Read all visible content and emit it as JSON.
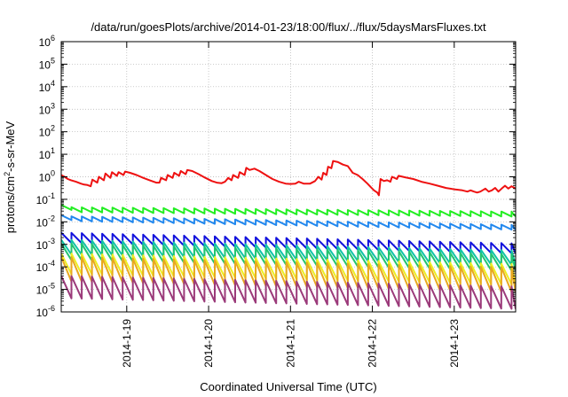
{
  "chart_data": {
    "type": "line",
    "title": "/data/run/goesPlots/archive/2014-01-23/18:00/flux/../flux/5daysMarsFluxes.txt",
    "xlabel": "Coordinated Universal Time (UTC)",
    "ylabel_parts": [
      "protons/cm",
      "2",
      "-s-sr-MeV"
    ],
    "x_axis": {
      "unit": "days",
      "start": "2014-01-18 06:00",
      "end": "2014-01-23 19:00",
      "xlim_days": [
        0,
        5.55
      ],
      "ticks": [
        {
          "label": "2014-1-19",
          "day": 0.8
        },
        {
          "label": "2014-1-20",
          "day": 1.8
        },
        {
          "label": "2014-1-21",
          "day": 2.8
        },
        {
          "label": "2014-1-22",
          "day": 3.8
        },
        {
          "label": "2014-1-23",
          "day": 4.8
        }
      ]
    },
    "y_axis": {
      "scale": "log",
      "ylim": [
        1e-06,
        1000000.0
      ],
      "tick_exponents": [
        -6,
        -5,
        -4,
        -3,
        -2,
        -1,
        0,
        1,
        2,
        3,
        4,
        5,
        6
      ],
      "tick_base": "10"
    },
    "grid": true,
    "legend": "none",
    "series": [
      {
        "color": "#ee1111",
        "points": [
          [
            0,
            1.2
          ],
          [
            0.04,
            1.0
          ],
          [
            0.08,
            0.8
          ],
          [
            0.12,
            0.7
          ],
          [
            0.18,
            0.6
          ],
          [
            0.24,
            0.5
          ],
          [
            0.28,
            0.45
          ],
          [
            0.32,
            0.43
          ],
          [
            0.36,
            0.38
          ],
          [
            0.38,
            0.75
          ],
          [
            0.44,
            0.55
          ],
          [
            0.46,
            1.0
          ],
          [
            0.52,
            0.7
          ],
          [
            0.54,
            1.4
          ],
          [
            0.6,
            0.9
          ],
          [
            0.62,
            1.6
          ],
          [
            0.68,
            1.1
          ],
          [
            0.7,
            1.6
          ],
          [
            0.76,
            1.2
          ],
          [
            0.78,
            1.7
          ],
          [
            0.84,
            1.5
          ],
          [
            0.92,
            1.2
          ],
          [
            1.0,
            0.9
          ],
          [
            1.08,
            0.7
          ],
          [
            1.16,
            0.55
          ],
          [
            1.2,
            0.55
          ],
          [
            1.22,
            0.9
          ],
          [
            1.28,
            0.7
          ],
          [
            1.3,
            1.2
          ],
          [
            1.36,
            0.9
          ],
          [
            1.38,
            1.5
          ],
          [
            1.44,
            1.1
          ],
          [
            1.46,
            1.8
          ],
          [
            1.52,
            1.3
          ],
          [
            1.54,
            2.0
          ],
          [
            1.6,
            1.8
          ],
          [
            1.68,
            1.3
          ],
          [
            1.76,
            0.9
          ],
          [
            1.84,
            0.65
          ],
          [
            1.9,
            0.55
          ],
          [
            1.96,
            0.52
          ],
          [
            2.0,
            0.6
          ],
          [
            2.04,
            0.9
          ],
          [
            2.08,
            0.7
          ],
          [
            2.1,
            1.2
          ],
          [
            2.16,
            0.9
          ],
          [
            2.18,
            1.6
          ],
          [
            2.24,
            1.2
          ],
          [
            2.26,
            2.5
          ],
          [
            2.3,
            2.0
          ],
          [
            2.36,
            2.3
          ],
          [
            2.42,
            1.8
          ],
          [
            2.5,
            1.2
          ],
          [
            2.58,
            0.8
          ],
          [
            2.66,
            0.6
          ],
          [
            2.74,
            0.5
          ],
          [
            2.8,
            0.48
          ],
          [
            2.86,
            0.5
          ],
          [
            2.9,
            0.6
          ],
          [
            2.96,
            0.5
          ],
          [
            3.04,
            0.5
          ],
          [
            3.1,
            0.65
          ],
          [
            3.14,
            1.0
          ],
          [
            3.18,
            0.75
          ],
          [
            3.2,
            1.5
          ],
          [
            3.24,
            1.2
          ],
          [
            3.26,
            2.8
          ],
          [
            3.3,
            2.4
          ],
          [
            3.32,
            5.0
          ],
          [
            3.38,
            4.5
          ],
          [
            3.44,
            3.5
          ],
          [
            3.5,
            3.0
          ],
          [
            3.56,
            1.5
          ],
          [
            3.62,
            1.2
          ],
          [
            3.68,
            0.8
          ],
          [
            3.74,
            0.5
          ],
          [
            3.78,
            0.35
          ],
          [
            3.82,
            0.25
          ],
          [
            3.86,
            0.2
          ],
          [
            3.88,
            0.15
          ],
          [
            3.9,
            0.8
          ],
          [
            3.94,
            0.65
          ],
          [
            3.98,
            0.7
          ],
          [
            4.02,
            0.6
          ],
          [
            4.04,
            1.0
          ],
          [
            4.1,
            0.8
          ],
          [
            4.12,
            1.1
          ],
          [
            4.2,
            0.95
          ],
          [
            4.3,
            0.8
          ],
          [
            4.4,
            0.6
          ],
          [
            4.5,
            0.5
          ],
          [
            4.6,
            0.4
          ],
          [
            4.7,
            0.32
          ],
          [
            4.8,
            0.28
          ],
          [
            4.9,
            0.25
          ],
          [
            4.96,
            0.22
          ],
          [
            5.0,
            0.25
          ],
          [
            5.04,
            0.22
          ],
          [
            5.08,
            0.2
          ],
          [
            5.12,
            0.22
          ],
          [
            5.18,
            0.3
          ],
          [
            5.22,
            0.22
          ],
          [
            5.26,
            0.25
          ],
          [
            5.3,
            0.32
          ],
          [
            5.34,
            0.22
          ],
          [
            5.38,
            0.3
          ],
          [
            5.42,
            0.4
          ],
          [
            5.46,
            0.3
          ],
          [
            5.5,
            0.38
          ],
          [
            5.55,
            0.3
          ]
        ]
      },
      {
        "color": "#22ee22",
        "sawtooth": {
          "base": 0.045,
          "start_factor": 1.25,
          "decay": 0.6,
          "jump": 1.35,
          "period": 0.125,
          "drift_per_day": 0.92
        }
      },
      {
        "color": "#2288ee",
        "sawtooth": {
          "base": 0.018,
          "start_factor": 1.1,
          "decay": 0.6,
          "jump": 1.7,
          "period": 0.125,
          "drift_per_day": 0.85
        }
      },
      {
        "color": "#1111dd",
        "sawtooth": {
          "base": 0.0033,
          "start_factor": 1.0,
          "decay": 0.35,
          "jump": 3.2,
          "period": 0.125,
          "drift_per_day": 0.82
        }
      },
      {
        "color": "#11c4a8",
        "sawtooth": {
          "base": 0.0016,
          "start_factor": 1.0,
          "decay": 0.22,
          "jump": 5.0,
          "period": 0.125,
          "drift_per_day": 0.82
        }
      },
      {
        "color": "#22c470",
        "sawtooth": {
          "base": 0.0011,
          "start_factor": 1.0,
          "decay": 0.18,
          "jump": 5.5,
          "period": 0.125,
          "drift_per_day": 0.82
        }
      },
      {
        "color": "#eeee22",
        "sawtooth": {
          "base": 0.0004,
          "start_factor": 1.0,
          "decay": 0.12,
          "jump": 8.0,
          "period": 0.125,
          "drift_per_day": 0.82
        }
      },
      {
        "color": "#e8a820",
        "sawtooth": {
          "base": 0.00028,
          "start_factor": 1.0,
          "decay": 0.08,
          "jump": 12.0,
          "period": 0.125,
          "drift_per_day": 0.82
        }
      },
      {
        "color": "#9b3a7a",
        "sawtooth": {
          "base": 4e-05,
          "start_factor": 1.0,
          "decay": 0.1,
          "jump": 10.0,
          "period": 0.125,
          "drift_per_day": 0.82
        }
      }
    ]
  }
}
